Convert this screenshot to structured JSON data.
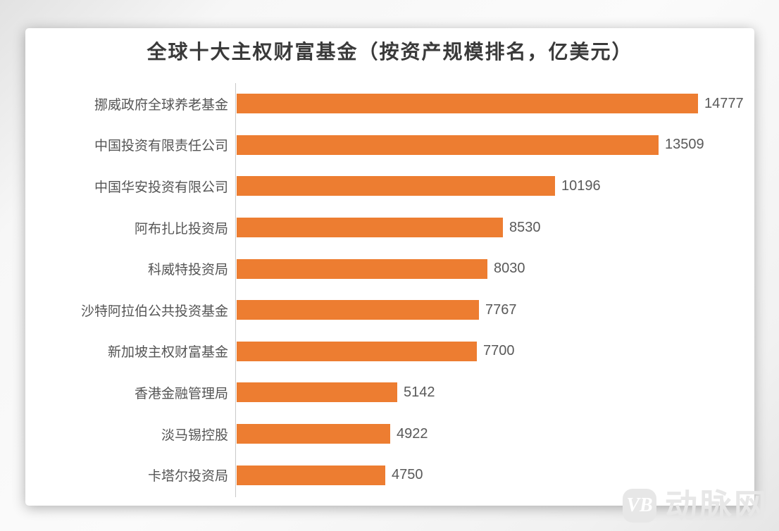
{
  "watermark": {
    "logo_text": "VB",
    "brand_text": "动脉网"
  },
  "chart_data": {
    "type": "bar",
    "orientation": "horizontal",
    "title": "全球十大主权财富基金（按资产规模排名，亿美元）",
    "categories": [
      "挪威政府全球养老基金",
      "中国投资有限责任公司",
      "中国华安投资有限公司",
      "阿布扎比投资局",
      "科威特投资局",
      "沙特阿拉伯公共投资基金",
      "新加坡主权财富基金",
      "香港金融管理局",
      "淡马锡控股",
      "卡塔尔投资局"
    ],
    "values": [
      14777,
      13509,
      10196,
      8530,
      8030,
      7767,
      7700,
      5142,
      4922,
      4750
    ],
    "max_value": 14777,
    "xlim": [
      0,
      16600
    ],
    "bar_color": "#ED7D31",
    "label_color": "#555555",
    "value_label_color": "#595959",
    "axis_line_color": "#c9c9c9",
    "grid": false,
    "legend": false,
    "value_labels_shown": true
  }
}
